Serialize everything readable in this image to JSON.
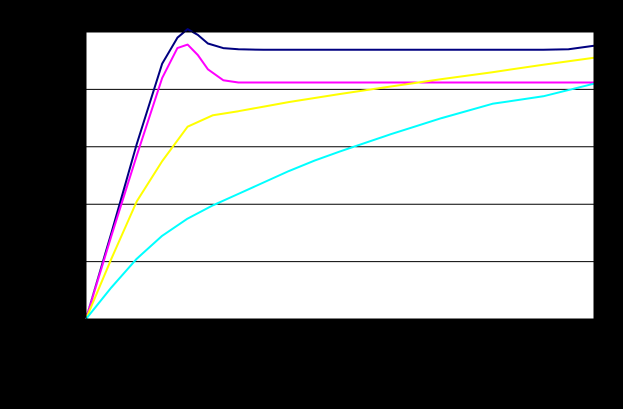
{
  "chart_data": {
    "type": "line",
    "title": "",
    "xlabel": "",
    "ylabel": "",
    "xlim": [
      0,
      100
    ],
    "ylim": [
      0,
      5
    ],
    "grid": {
      "horizontal": true,
      "vertical": false
    },
    "legend": "none",
    "series": [
      {
        "color": "#000080",
        "x": [
          0,
          5,
          10,
          15,
          18,
          20,
          22,
          24,
          27,
          30,
          35,
          40,
          45,
          50,
          60,
          70,
          80,
          90,
          95,
          100
        ],
        "y": [
          0,
          1.5,
          3.05,
          4.45,
          4.9,
          5.05,
          4.95,
          4.8,
          4.72,
          4.7,
          4.69,
          4.69,
          4.69,
          4.69,
          4.69,
          4.69,
          4.69,
          4.69,
          4.7,
          4.76
        ]
      },
      {
        "color": "#FF00FF",
        "x": [
          0,
          5,
          10,
          15,
          18,
          20,
          22,
          24,
          27,
          30,
          35,
          40,
          45,
          50,
          60,
          70,
          80,
          90,
          95,
          100
        ],
        "y": [
          0,
          1.45,
          2.85,
          4.2,
          4.72,
          4.78,
          4.6,
          4.35,
          4.16,
          4.12,
          4.12,
          4.12,
          4.12,
          4.12,
          4.12,
          4.12,
          4.12,
          4.12,
          4.12,
          4.12
        ]
      },
      {
        "color": "#FFFF00",
        "x": [
          0,
          5,
          10,
          15,
          20,
          25,
          30,
          35,
          40,
          45,
          50,
          60,
          70,
          80,
          90,
          100
        ],
        "y": [
          0,
          1.05,
          2.05,
          2.75,
          3.35,
          3.55,
          3.62,
          3.7,
          3.78,
          3.85,
          3.92,
          4.05,
          4.18,
          4.3,
          4.43,
          4.55
        ]
      },
      {
        "color": "#00FFFF",
        "x": [
          0,
          5,
          10,
          15,
          20,
          25,
          30,
          35,
          40,
          45,
          50,
          60,
          70,
          80,
          90,
          100
        ],
        "y": [
          0,
          0.55,
          1.05,
          1.45,
          1.75,
          1.98,
          2.18,
          2.38,
          2.58,
          2.76,
          2.92,
          3.22,
          3.5,
          3.75,
          3.88,
          4.1
        ]
      }
    ]
  }
}
